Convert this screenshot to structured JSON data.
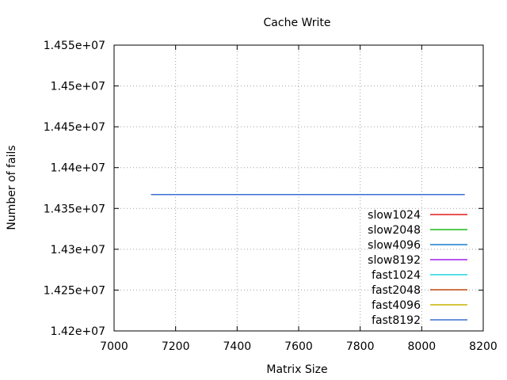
{
  "chart_data": {
    "type": "line",
    "title": "Cache Write",
    "xlabel": "Matrix Size",
    "ylabel": "Number of fails",
    "xlim": [
      7000,
      8200
    ],
    "ylim": [
      14200000,
      14550000
    ],
    "x_ticks": [
      7000,
      7200,
      7400,
      7600,
      7800,
      8000,
      8200
    ],
    "x_tick_labels": [
      "7000",
      "7200",
      "7400",
      "7600",
      "7800",
      "8000",
      "8200"
    ],
    "y_ticks": [
      14200000,
      14250000,
      14300000,
      14350000,
      14400000,
      14450000,
      14500000,
      14550000
    ],
    "y_tick_labels": [
      "1.42e+07",
      "1.425e+07",
      "1.43e+07",
      "1.435e+07",
      "1.44e+07",
      "1.445e+07",
      "1.45e+07",
      "1.455e+07"
    ],
    "grid": true,
    "legend_position": "bottom-right",
    "series": [
      {
        "name": "slow1024",
        "color": "#e41a1c",
        "points": []
      },
      {
        "name": "slow2048",
        "color": "#1ab81a",
        "points": []
      },
      {
        "name": "slow4096",
        "color": "#1a7fd0",
        "points": []
      },
      {
        "name": "slow8192",
        "color": "#a020f0",
        "points": []
      },
      {
        "name": "fast1024",
        "color": "#22d3e0",
        "points": []
      },
      {
        "name": "fast2048",
        "color": "#c04a10",
        "points": []
      },
      {
        "name": "fast4096",
        "color": "#c8b400",
        "points": []
      },
      {
        "name": "fast8192",
        "color": "#3a6fd0",
        "points": [
          [
            7120,
            14367000
          ],
          [
            8140,
            14367000
          ]
        ]
      }
    ]
  }
}
